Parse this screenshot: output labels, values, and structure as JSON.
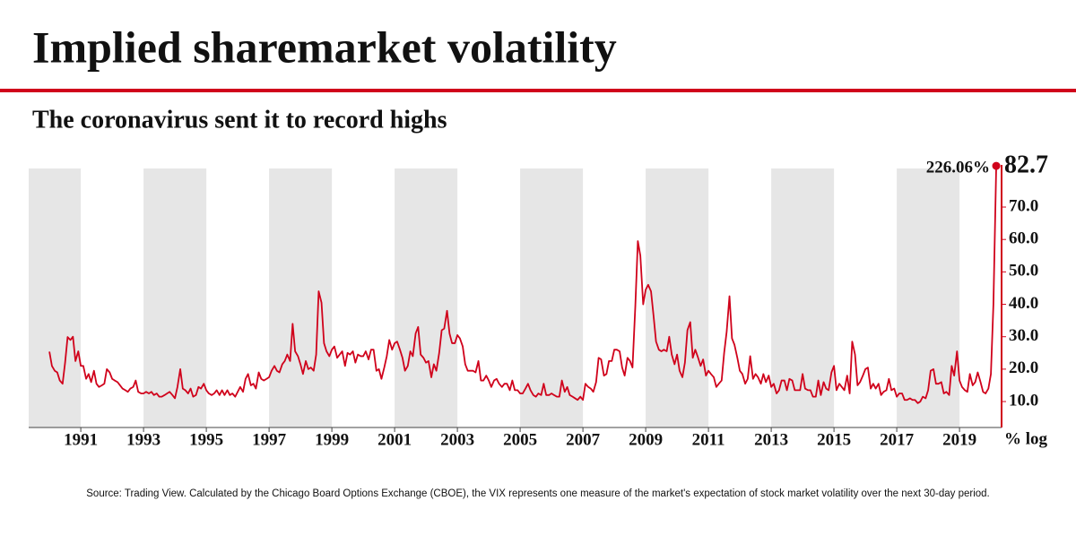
{
  "chart_data": {
    "type": "line",
    "title": "Implied sharemarket volatility",
    "subtitle": "The coronavirus sent it to record highs",
    "source": "Source: Trading View. Calculated by the Chicago Board Options Exchange (CBOE), the VIX represents one measure of the market's expectation of stock market volatility over the next 30-day period.",
    "y_axis_label": "% log",
    "annotation": "226.06%",
    "color": "#d0021b",
    "xlim": [
      1989.34,
      2020.34
    ],
    "xticks": [
      1991,
      1993,
      1995,
      1997,
      1999,
      2001,
      2003,
      2005,
      2007,
      2009,
      2011,
      2013,
      2015,
      2017,
      2019
    ],
    "ylim": [
      2,
      83
    ],
    "yticks": [
      {
        "value": 10,
        "label": "10.0"
      },
      {
        "value": 20,
        "label": "20.0"
      },
      {
        "value": 30,
        "label": "30.0"
      },
      {
        "value": 40,
        "label": "40.0"
      },
      {
        "value": 50,
        "label": "50.0"
      },
      {
        "value": 60,
        "label": "60.0"
      },
      {
        "value": 70,
        "label": "70.0"
      }
    ],
    "x": [
      1990.0,
      1990.08,
      1990.17,
      1990.25,
      1990.33,
      1990.42,
      1990.5,
      1990.58,
      1990.67,
      1990.75,
      1990.83,
      1990.92,
      1991.0,
      1991.08,
      1991.17,
      1991.25,
      1991.33,
      1991.42,
      1991.5,
      1991.58,
      1991.67,
      1991.75,
      1991.83,
      1991.92,
      1992.0,
      1992.08,
      1992.17,
      1992.25,
      1992.33,
      1992.42,
      1992.5,
      1992.58,
      1992.67,
      1992.75,
      1992.83,
      1992.92,
      1993.0,
      1993.08,
      1993.17,
      1993.25,
      1993.33,
      1993.42,
      1993.5,
      1993.58,
      1993.67,
      1993.75,
      1993.83,
      1993.92,
      1994.0,
      1994.08,
      1994.17,
      1994.25,
      1994.33,
      1994.42,
      1994.5,
      1994.58,
      1994.67,
      1994.75,
      1994.83,
      1994.92,
      1995.0,
      1995.08,
      1995.17,
      1995.25,
      1995.33,
      1995.42,
      1995.5,
      1995.58,
      1995.67,
      1995.75,
      1995.83,
      1995.92,
      1996.0,
      1996.08,
      1996.17,
      1996.25,
      1996.33,
      1996.42,
      1996.5,
      1996.58,
      1996.67,
      1996.75,
      1996.83,
      1996.92,
      1997.0,
      1997.08,
      1997.17,
      1997.25,
      1997.33,
      1997.42,
      1997.5,
      1997.58,
      1997.67,
      1997.75,
      1997.83,
      1997.92,
      1998.0,
      1998.08,
      1998.17,
      1998.25,
      1998.33,
      1998.42,
      1998.5,
      1998.58,
      1998.67,
      1998.75,
      1998.83,
      1998.92,
      1999.0,
      1999.08,
      1999.17,
      1999.25,
      1999.33,
      1999.42,
      1999.5,
      1999.58,
      1999.67,
      1999.75,
      1999.83,
      1999.92,
      2000.0,
      2000.08,
      2000.17,
      2000.25,
      2000.33,
      2000.42,
      2000.5,
      2000.58,
      2000.67,
      2000.75,
      2000.83,
      2000.92,
      2001.0,
      2001.08,
      2001.17,
      2001.25,
      2001.33,
      2001.42,
      2001.5,
      2001.58,
      2001.67,
      2001.75,
      2001.83,
      2001.92,
      2002.0,
      2002.08,
      2002.17,
      2002.25,
      2002.33,
      2002.42,
      2002.5,
      2002.58,
      2002.67,
      2002.75,
      2002.83,
      2002.92,
      2003.0,
      2003.08,
      2003.17,
      2003.25,
      2003.33,
      2003.42,
      2003.5,
      2003.58,
      2003.67,
      2003.75,
      2003.83,
      2003.92,
      2004.0,
      2004.08,
      2004.17,
      2004.25,
      2004.33,
      2004.42,
      2004.5,
      2004.58,
      2004.67,
      2004.75,
      2004.83,
      2004.92,
      2005.0,
      2005.08,
      2005.17,
      2005.25,
      2005.33,
      2005.42,
      2005.5,
      2005.58,
      2005.67,
      2005.75,
      2005.83,
      2005.92,
      2006.0,
      2006.08,
      2006.17,
      2006.25,
      2006.33,
      2006.42,
      2006.5,
      2006.58,
      2006.67,
      2006.75,
      2006.83,
      2006.92,
      2007.0,
      2007.08,
      2007.17,
      2007.25,
      2007.33,
      2007.42,
      2007.5,
      2007.58,
      2007.67,
      2007.75,
      2007.83,
      2007.92,
      2008.0,
      2008.08,
      2008.17,
      2008.25,
      2008.33,
      2008.42,
      2008.5,
      2008.58,
      2008.67,
      2008.75,
      2008.83,
      2008.92,
      2009.0,
      2009.08,
      2009.17,
      2009.25,
      2009.33,
      2009.42,
      2009.5,
      2009.58,
      2009.67,
      2009.75,
      2009.83,
      2009.92,
      2010.0,
      2010.08,
      2010.17,
      2010.25,
      2010.33,
      2010.42,
      2010.5,
      2010.58,
      2010.67,
      2010.75,
      2010.83,
      2010.92,
      2011.0,
      2011.08,
      2011.17,
      2011.25,
      2011.33,
      2011.42,
      2011.5,
      2011.58,
      2011.67,
      2011.75,
      2011.83,
      2011.92,
      2012.0,
      2012.08,
      2012.17,
      2012.25,
      2012.33,
      2012.42,
      2012.5,
      2012.58,
      2012.67,
      2012.75,
      2012.83,
      2012.92,
      2013.0,
      2013.08,
      2013.17,
      2013.25,
      2013.33,
      2013.42,
      2013.5,
      2013.58,
      2013.67,
      2013.75,
      2013.83,
      2013.92,
      2014.0,
      2014.08,
      2014.17,
      2014.25,
      2014.33,
      2014.42,
      2014.5,
      2014.58,
      2014.67,
      2014.75,
      2014.83,
      2014.92,
      2015.0,
      2015.08,
      2015.17,
      2015.25,
      2015.33,
      2015.42,
      2015.5,
      2015.58,
      2015.67,
      2015.75,
      2015.83,
      2015.92,
      2016.0,
      2016.08,
      2016.17,
      2016.25,
      2016.33,
      2016.42,
      2016.5,
      2016.58,
      2016.67,
      2016.75,
      2016.83,
      2016.92,
      2017.0,
      2017.08,
      2017.17,
      2017.25,
      2017.33,
      2017.42,
      2017.5,
      2017.58,
      2017.67,
      2017.75,
      2017.83,
      2017.92,
      2018.0,
      2018.08,
      2018.17,
      2018.25,
      2018.33,
      2018.42,
      2018.5,
      2018.58,
      2018.67,
      2018.75,
      2018.83,
      2018.92,
      2019.0,
      2019.08,
      2019.17,
      2019.25,
      2019.33,
      2019.42,
      2019.5,
      2019.58,
      2019.67,
      2019.75,
      2019.83,
      2019.92,
      2020.0,
      2020.08,
      2020.17
    ],
    "values": [
      25.4,
      21.0,
      19.5,
      19.0,
      16.5,
      15.5,
      22.0,
      29.9,
      29.0,
      30.0,
      22.5,
      25.5,
      21.0,
      21.0,
      17.0,
      18.5,
      16.0,
      19.5,
      15.5,
      14.5,
      15.0,
      15.5,
      20.0,
      19.0,
      17.0,
      16.5,
      16.0,
      15.0,
      14.0,
      13.5,
      13.0,
      14.0,
      14.5,
      16.5,
      13.0,
      12.5,
      12.5,
      13.0,
      12.5,
      13.0,
      12.0,
      12.5,
      11.5,
      11.5,
      12.0,
      12.5,
      13.0,
      12.0,
      11.0,
      14.5,
      20.0,
      14.0,
      13.5,
      12.5,
      14.0,
      11.5,
      12.0,
      14.5,
      14.0,
      15.5,
      13.5,
      12.5,
      12.0,
      12.5,
      13.5,
      12.0,
      13.5,
      12.0,
      13.5,
      12.0,
      12.5,
      11.5,
      13.0,
      14.5,
      13.0,
      17.0,
      18.5,
      15.0,
      15.5,
      14.0,
      19.0,
      17.0,
      16.5,
      17.0,
      17.5,
      19.5,
      21.0,
      19.5,
      19.0,
      21.5,
      22.5,
      24.5,
      22.5,
      34.0,
      25.5,
      24.0,
      21.5,
      18.5,
      22.5,
      20.0,
      20.5,
      19.5,
      24.5,
      44.0,
      40.5,
      28.0,
      25.5,
      24.0,
      26.0,
      27.0,
      23.5,
      24.5,
      25.5,
      21.0,
      25.0,
      24.5,
      25.5,
      22.0,
      24.5,
      24.0,
      24.0,
      25.5,
      23.0,
      26.0,
      26.0,
      19.5,
      20.0,
      17.0,
      20.5,
      24.0,
      29.0,
      26.0,
      28.0,
      28.5,
      26.0,
      23.5,
      19.5,
      21.0,
      25.5,
      24.0,
      31.0,
      33.0,
      24.5,
      23.5,
      22.0,
      22.5,
      17.5,
      21.5,
      19.5,
      25.0,
      32.0,
      32.5,
      38.0,
      31.0,
      28.0,
      28.0,
      30.5,
      29.5,
      27.0,
      21.5,
      19.5,
      19.5,
      19.5,
      19.0,
      22.5,
      16.5,
      16.5,
      18.0,
      16.5,
      14.5,
      16.5,
      17.0,
      15.5,
      14.5,
      15.5,
      15.5,
      13.5,
      16.5,
      13.5,
      13.5,
      12.5,
      12.5,
      14.0,
      15.5,
      13.5,
      12.0,
      11.5,
      12.5,
      12.0,
      15.5,
      12.0,
      12.0,
      12.5,
      12.0,
      11.5,
      11.5,
      16.5,
      13.0,
      14.5,
      12.0,
      11.5,
      11.0,
      10.5,
      11.5,
      10.5,
      15.5,
      14.5,
      14.0,
      13.0,
      16.0,
      23.5,
      23.0,
      18.0,
      18.5,
      22.5,
      22.5,
      26.0,
      26.0,
      25.5,
      20.5,
      18.0,
      23.5,
      22.5,
      20.5,
      39.5,
      59.5,
      55.0,
      40.0,
      44.5,
      46.0,
      44.0,
      36.5,
      28.5,
      26.0,
      25.5,
      26.0,
      25.5,
      30.0,
      24.5,
      21.5,
      24.5,
      19.5,
      17.5,
      22.0,
      32.0,
      34.5,
      23.5,
      26.0,
      23.5,
      21.0,
      23.0,
      18.0,
      19.5,
      18.5,
      17.5,
      14.5,
      15.5,
      16.5,
      25.0,
      31.5,
      42.5,
      29.5,
      27.5,
      23.5,
      19.5,
      18.5,
      15.5,
      17.0,
      24.0,
      17.0,
      18.5,
      17.5,
      15.5,
      18.5,
      16.0,
      18.0,
      14.5,
      15.5,
      12.5,
      13.5,
      16.5,
      16.5,
      13.5,
      17.0,
      16.5,
      13.5,
      13.5,
      13.5,
      18.5,
      14.0,
      13.5,
      13.5,
      11.5,
      11.5,
      16.5,
      12.0,
      16.0,
      14.0,
      13.5,
      19.0,
      21.0,
      13.5,
      15.5,
      14.5,
      13.5,
      18.0,
      12.5,
      28.5,
      24.5,
      15.0,
      16.0,
      18.0,
      20.0,
      20.5,
      14.0,
      15.5,
      14.0,
      15.5,
      12.0,
      13.0,
      13.5,
      17.0,
      13.5,
      14.0,
      11.5,
      12.5,
      12.5,
      10.5,
      10.5,
      11.0,
      10.5,
      10.5,
      9.5,
      10.0,
      11.5,
      11.0,
      13.5,
      19.5,
      20.0,
      15.5,
      15.5,
      16.0,
      12.5,
      13.0,
      12.0,
      21.0,
      18.0,
      25.5,
      16.5,
      14.5,
      13.5,
      13.0,
      18.5,
      15.0,
      16.0,
      19.0,
      16.0,
      13.0,
      12.5,
      14.0,
      18.5,
      40.0,
      82.7
    ]
  }
}
